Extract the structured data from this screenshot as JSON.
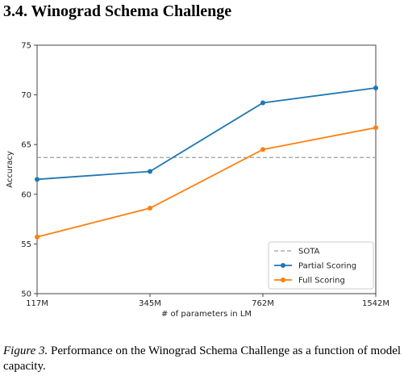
{
  "section": {
    "heading": "3.4. Winograd Schema Challenge"
  },
  "caption": {
    "figure_ref": "Figure 3.",
    "text": " Performance on the Winograd Schema Challenge as a function of model capacity."
  },
  "chart_data": {
    "type": "line",
    "title": "",
    "xlabel": "# of parameters in LM",
    "ylabel": "Accuracy",
    "categories": [
      "117M",
      "345M",
      "762M",
      "1542M"
    ],
    "ylim": [
      50,
      75
    ],
    "yticks": [
      50,
      55,
      60,
      65,
      70,
      75
    ],
    "grid": false,
    "legend_position": "bottom-right",
    "reference_lines": [
      {
        "name": "SOTA",
        "value": 63.7,
        "style": "dashed",
        "color": "#9e9e9e"
      }
    ],
    "series": [
      {
        "name": "Partial Scoring",
        "color": "#1f77b4",
        "values": [
          61.5,
          62.3,
          69.2,
          70.7
        ]
      },
      {
        "name": "Full Scoring",
        "color": "#ff7f0e",
        "values": [
          55.7,
          58.6,
          64.5,
          66.7
        ]
      }
    ]
  }
}
